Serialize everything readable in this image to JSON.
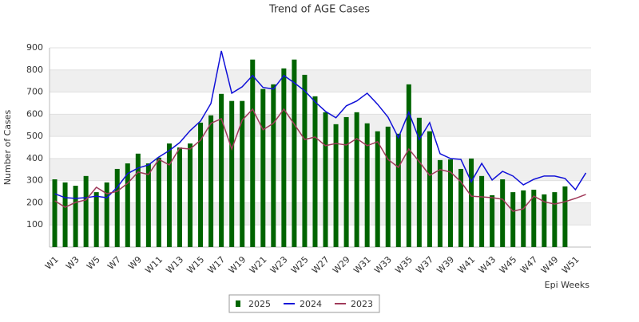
{
  "chart_data": {
    "type": "bar",
    "title": "Trend of AGE Cases",
    "x_label": "Epi Weeks",
    "y_label": "Number of Cases",
    "categories": [
      "W1",
      null,
      "W3",
      null,
      "W5",
      null,
      "W7",
      null,
      "W9",
      null,
      "W11",
      null,
      "W13",
      null,
      "W15",
      null,
      "W17",
      null,
      "W19",
      null,
      "W21",
      null,
      "W23",
      null,
      "W25",
      null,
      "W27",
      null,
      "W29",
      null,
      "W31",
      null,
      "W33",
      null,
      "W35",
      null,
      "W37",
      null,
      "W39",
      null,
      "W41",
      null,
      "W43",
      null,
      "W45",
      null,
      "W47",
      null,
      "W49",
      null,
      "W51",
      null
    ],
    "ylim": [
      0,
      900
    ],
    "yticks": [
      100,
      200,
      300,
      400,
      500,
      600,
      700,
      800,
      900
    ],
    "grid": true,
    "legend": "bottom",
    "series": [
      {
        "name": "2025",
        "type": "bar",
        "color": "#006400",
        "values": [
          306,
          292,
          277,
          321,
          248,
          292,
          353,
          378,
          422,
          378,
          404,
          468,
          450,
          468,
          562,
          595,
          692,
          660,
          660,
          847,
          714,
          735,
          807,
          847,
          778,
          681,
          609,
          555,
          587,
          609,
          559,
          523,
          544,
          512,
          735,
          584,
          523,
          393,
          396,
          353,
          400,
          321,
          234,
          306,
          248,
          256,
          259,
          238,
          248,
          274,
          null,
          null
        ]
      },
      {
        "name": "2024",
        "type": "line",
        "color": "#1010d8",
        "values": [
          241,
          223,
          220,
          223,
          230,
          223,
          270,
          332,
          357,
          371,
          407,
          436,
          472,
          526,
          569,
          649,
          886,
          695,
          724,
          775,
          721,
          714,
          775,
          742,
          706,
          656,
          613,
          584,
          638,
          660,
          695,
          645,
          587,
          494,
          609,
          486,
          562,
          422,
          400,
          396,
          295,
          378,
          303,
          342,
          321,
          281,
          306,
          321,
          321,
          310,
          259,
          335
        ]
      },
      {
        "name": "2023",
        "type": "line",
        "color": "#a03a5a",
        "values": [
          209,
          180,
          202,
          213,
          270,
          241,
          252,
          288,
          339,
          328,
          396,
          371,
          447,
          443,
          483,
          559,
          580,
          443,
          573,
          623,
          530,
          559,
          623,
          555,
          486,
          497,
          458,
          468,
          461,
          490,
          458,
          476,
          396,
          360,
          443,
          386,
          324,
          350,
          339,
          295,
          230,
          227,
          223,
          216,
          162,
          173,
          230,
          205,
          194,
          205,
          220,
          238
        ]
      }
    ]
  }
}
